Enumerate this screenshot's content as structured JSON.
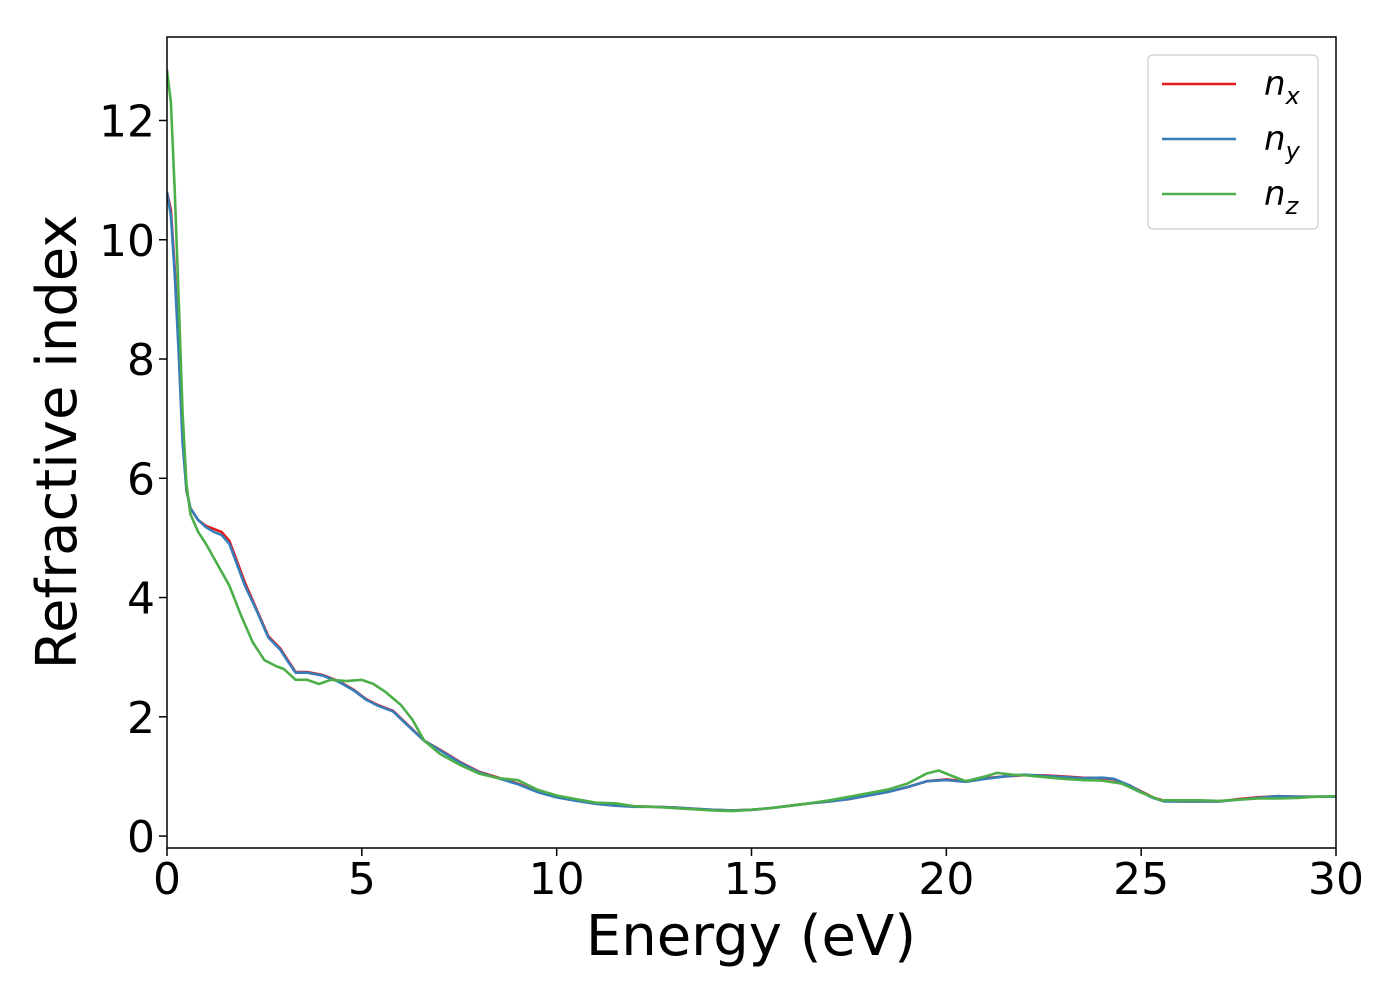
{
  "chart_data": {
    "type": "line",
    "title": "",
    "xlabel": "Energy (eV)",
    "ylabel": "Refractive index",
    "xlim": [
      0,
      30
    ],
    "ylim": [
      -0.2,
      13.4
    ],
    "xticks": [
      0,
      5,
      10,
      15,
      20,
      25,
      30
    ],
    "yticks": [
      0,
      2,
      4,
      6,
      8,
      10,
      12
    ],
    "grid": false,
    "legend_position": "top-right",
    "series": [
      {
        "name": "n_x",
        "legend_base": "n",
        "legend_sub": "x",
        "color": "#e41a1c",
        "points": [
          [
            0,
            10.8
          ],
          [
            0.1,
            10.5
          ],
          [
            0.2,
            9.5
          ],
          [
            0.3,
            8.2
          ],
          [
            0.4,
            6.7
          ],
          [
            0.5,
            5.8
          ],
          [
            0.6,
            5.5
          ],
          [
            0.8,
            5.3
          ],
          [
            1.0,
            5.2
          ],
          [
            1.2,
            5.15
          ],
          [
            1.4,
            5.1
          ],
          [
            1.6,
            4.95
          ],
          [
            1.8,
            4.6
          ],
          [
            2.0,
            4.25
          ],
          [
            2.3,
            3.8
          ],
          [
            2.6,
            3.35
          ],
          [
            2.9,
            3.15
          ],
          [
            3.1,
            2.95
          ],
          [
            3.3,
            2.75
          ],
          [
            3.6,
            2.75
          ],
          [
            4.0,
            2.7
          ],
          [
            4.4,
            2.6
          ],
          [
            4.8,
            2.45
          ],
          [
            5.1,
            2.3
          ],
          [
            5.4,
            2.2
          ],
          [
            5.8,
            2.1
          ],
          [
            6.2,
            1.85
          ],
          [
            6.6,
            1.6
          ],
          [
            7.0,
            1.45
          ],
          [
            7.5,
            1.25
          ],
          [
            8.0,
            1.08
          ],
          [
            8.5,
            0.98
          ],
          [
            9.0,
            0.88
          ],
          [
            9.5,
            0.75
          ],
          [
            10.0,
            0.66
          ],
          [
            10.5,
            0.6
          ],
          [
            11.0,
            0.55
          ],
          [
            11.5,
            0.52
          ],
          [
            12.0,
            0.5
          ],
          [
            12.5,
            0.49
          ],
          [
            13.0,
            0.48
          ],
          [
            13.5,
            0.46
          ],
          [
            14.0,
            0.44
          ],
          [
            14.5,
            0.43
          ],
          [
            15.0,
            0.44
          ],
          [
            15.5,
            0.47
          ],
          [
            16.0,
            0.51
          ],
          [
            16.5,
            0.55
          ],
          [
            17.0,
            0.58
          ],
          [
            17.5,
            0.62
          ],
          [
            18.0,
            0.68
          ],
          [
            18.5,
            0.74
          ],
          [
            19.0,
            0.82
          ],
          [
            19.5,
            0.92
          ],
          [
            20.0,
            0.95
          ],
          [
            20.5,
            0.92
          ],
          [
            21.0,
            0.97
          ],
          [
            21.5,
            1.0
          ],
          [
            22.0,
            1.02
          ],
          [
            22.5,
            1.02
          ],
          [
            23.0,
            1.0
          ],
          [
            23.5,
            0.98
          ],
          [
            24.0,
            0.97
          ],
          [
            24.3,
            0.95
          ],
          [
            24.7,
            0.85
          ],
          [
            25.0,
            0.75
          ],
          [
            25.3,
            0.65
          ],
          [
            25.6,
            0.59
          ],
          [
            26.0,
            0.58
          ],
          [
            26.5,
            0.58
          ],
          [
            27.0,
            0.58
          ],
          [
            27.5,
            0.62
          ],
          [
            28.0,
            0.65
          ],
          [
            28.5,
            0.67
          ],
          [
            29.0,
            0.66
          ],
          [
            29.5,
            0.66
          ],
          [
            30.0,
            0.66
          ]
        ]
      },
      {
        "name": "n_y",
        "legend_base": "n",
        "legend_sub": "y",
        "color": "#377eb8",
        "points": [
          [
            0,
            10.8
          ],
          [
            0.1,
            10.4
          ],
          [
            0.2,
            9.4
          ],
          [
            0.3,
            8.1
          ],
          [
            0.4,
            6.6
          ],
          [
            0.5,
            5.8
          ],
          [
            0.6,
            5.5
          ],
          [
            0.8,
            5.3
          ],
          [
            1.0,
            5.18
          ],
          [
            1.2,
            5.1
          ],
          [
            1.4,
            5.05
          ],
          [
            1.6,
            4.9
          ],
          [
            1.8,
            4.55
          ],
          [
            2.0,
            4.2
          ],
          [
            2.3,
            3.78
          ],
          [
            2.6,
            3.33
          ],
          [
            2.9,
            3.13
          ],
          [
            3.1,
            2.93
          ],
          [
            3.3,
            2.74
          ],
          [
            3.6,
            2.74
          ],
          [
            4.0,
            2.69
          ],
          [
            4.4,
            2.59
          ],
          [
            4.8,
            2.44
          ],
          [
            5.1,
            2.29
          ],
          [
            5.4,
            2.19
          ],
          [
            5.8,
            2.09
          ],
          [
            6.2,
            1.84
          ],
          [
            6.6,
            1.6
          ],
          [
            7.0,
            1.44
          ],
          [
            7.5,
            1.24
          ],
          [
            8.0,
            1.07
          ],
          [
            8.5,
            0.97
          ],
          [
            9.0,
            0.87
          ],
          [
            9.5,
            0.74
          ],
          [
            10.0,
            0.65
          ],
          [
            10.5,
            0.59
          ],
          [
            11.0,
            0.54
          ],
          [
            11.5,
            0.51
          ],
          [
            12.0,
            0.49
          ],
          [
            12.5,
            0.49
          ],
          [
            13.0,
            0.48
          ],
          [
            13.5,
            0.46
          ],
          [
            14.0,
            0.44
          ],
          [
            14.5,
            0.43
          ],
          [
            15.0,
            0.44
          ],
          [
            15.5,
            0.47
          ],
          [
            16.0,
            0.51
          ],
          [
            16.5,
            0.55
          ],
          [
            17.0,
            0.58
          ],
          [
            17.5,
            0.62
          ],
          [
            18.0,
            0.68
          ],
          [
            18.5,
            0.74
          ],
          [
            19.0,
            0.82
          ],
          [
            19.5,
            0.92
          ],
          [
            20.0,
            0.94
          ],
          [
            20.5,
            0.91
          ],
          [
            21.0,
            0.96
          ],
          [
            21.5,
            1.0
          ],
          [
            22.0,
            1.03
          ],
          [
            22.5,
            1.01
          ],
          [
            23.0,
            0.99
          ],
          [
            23.5,
            0.97
          ],
          [
            24.0,
            0.98
          ],
          [
            24.3,
            0.96
          ],
          [
            24.7,
            0.85
          ],
          [
            25.0,
            0.74
          ],
          [
            25.3,
            0.64
          ],
          [
            25.6,
            0.58
          ],
          [
            26.0,
            0.58
          ],
          [
            26.5,
            0.58
          ],
          [
            27.0,
            0.58
          ],
          [
            27.5,
            0.61
          ],
          [
            28.0,
            0.64
          ],
          [
            28.5,
            0.67
          ],
          [
            29.0,
            0.66
          ],
          [
            29.5,
            0.66
          ],
          [
            30.0,
            0.66
          ]
        ]
      },
      {
        "name": "n_z",
        "legend_base": "n",
        "legend_sub": "z",
        "color": "#4daf4a",
        "points": [
          [
            0,
            12.85
          ],
          [
            0.1,
            12.3
          ],
          [
            0.2,
            10.8
          ],
          [
            0.3,
            9.0
          ],
          [
            0.4,
            7.1
          ],
          [
            0.5,
            5.9
          ],
          [
            0.6,
            5.4
          ],
          [
            0.8,
            5.1
          ],
          [
            1.0,
            4.9
          ],
          [
            1.3,
            4.55
          ],
          [
            1.6,
            4.2
          ],
          [
            1.9,
            3.7
          ],
          [
            2.2,
            3.25
          ],
          [
            2.5,
            2.95
          ],
          [
            2.8,
            2.85
          ],
          [
            3.0,
            2.8
          ],
          [
            3.3,
            2.62
          ],
          [
            3.6,
            2.62
          ],
          [
            3.9,
            2.55
          ],
          [
            4.2,
            2.62
          ],
          [
            4.6,
            2.6
          ],
          [
            5.0,
            2.62
          ],
          [
            5.3,
            2.55
          ],
          [
            5.6,
            2.42
          ],
          [
            6.0,
            2.2
          ],
          [
            6.3,
            1.95
          ],
          [
            6.6,
            1.6
          ],
          [
            7.0,
            1.38
          ],
          [
            7.5,
            1.2
          ],
          [
            8.0,
            1.05
          ],
          [
            8.5,
            0.97
          ],
          [
            9.0,
            0.94
          ],
          [
            9.5,
            0.78
          ],
          [
            10.0,
            0.68
          ],
          [
            10.5,
            0.62
          ],
          [
            11.0,
            0.56
          ],
          [
            11.5,
            0.55
          ],
          [
            12.0,
            0.5
          ],
          [
            12.5,
            0.49
          ],
          [
            13.0,
            0.47
          ],
          [
            13.5,
            0.45
          ],
          [
            14.0,
            0.43
          ],
          [
            14.5,
            0.42
          ],
          [
            15.0,
            0.44
          ],
          [
            15.5,
            0.47
          ],
          [
            16.0,
            0.51
          ],
          [
            16.5,
            0.55
          ],
          [
            17.0,
            0.6
          ],
          [
            17.5,
            0.66
          ],
          [
            18.0,
            0.72
          ],
          [
            18.5,
            0.78
          ],
          [
            19.0,
            0.88
          ],
          [
            19.5,
            1.05
          ],
          [
            19.8,
            1.1
          ],
          [
            20.1,
            1.02
          ],
          [
            20.5,
            0.92
          ],
          [
            21.0,
            1.0
          ],
          [
            21.3,
            1.06
          ],
          [
            21.7,
            1.03
          ],
          [
            22.0,
            1.02
          ],
          [
            22.5,
            0.99
          ],
          [
            23.0,
            0.96
          ],
          [
            23.5,
            0.94
          ],
          [
            24.0,
            0.93
          ],
          [
            24.5,
            0.88
          ],
          [
            25.0,
            0.73
          ],
          [
            25.5,
            0.6
          ],
          [
            26.0,
            0.6
          ],
          [
            26.5,
            0.6
          ],
          [
            27.0,
            0.59
          ],
          [
            27.5,
            0.61
          ],
          [
            28.0,
            0.63
          ],
          [
            28.5,
            0.63
          ],
          [
            29.0,
            0.64
          ],
          [
            29.5,
            0.66
          ],
          [
            30.0,
            0.67
          ]
        ]
      }
    ]
  }
}
